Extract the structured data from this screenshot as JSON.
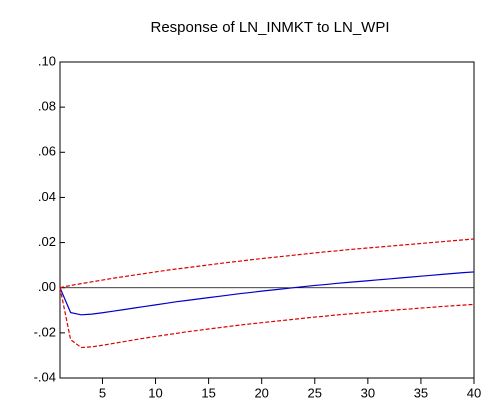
{
  "chart_data": {
    "type": "line",
    "title": "Response of LN_INMKT to LN_WPI",
    "x": [
      1,
      2,
      3,
      4,
      5,
      6,
      7,
      8,
      9,
      10,
      11,
      12,
      13,
      14,
      15,
      16,
      17,
      18,
      19,
      20,
      21,
      22,
      23,
      24,
      25,
      26,
      27,
      28,
      29,
      30,
      31,
      32,
      33,
      34,
      35,
      36,
      37,
      38,
      39,
      40
    ],
    "series": [
      {
        "color": "#0000cc",
        "dashed": false,
        "values": [
          0,
          -0.011,
          -0.012,
          -0.0117,
          -0.0111,
          -0.0104,
          -0.0097,
          -0.009,
          -0.0083,
          -0.0076,
          -0.0069,
          -0.0062,
          -0.0056,
          -0.005,
          -0.0044,
          -0.0038,
          -0.0032,
          -0.0026,
          -0.0021,
          -0.0015,
          -0.001,
          -0.0005,
          0,
          0.0005,
          0.001,
          0.0014,
          0.0019,
          0.0023,
          0.0027,
          0.0031,
          0.0035,
          0.0039,
          0.0043,
          0.0047,
          0.0051,
          0.0055,
          0.0059,
          0.0063,
          0.0067,
          0.007
        ]
      },
      {
        "color": "#dd0000",
        "dashed": true,
        "values": [
          0,
          0.001,
          0.0018,
          0.0026,
          0.0034,
          0.0042,
          0.0049,
          0.0056,
          0.0063,
          0.007,
          0.0077,
          0.0083,
          0.0089,
          0.0095,
          0.0101,
          0.0107,
          0.0113,
          0.0118,
          0.0124,
          0.0129,
          0.0134,
          0.0139,
          0.0144,
          0.0149,
          0.0154,
          0.0159,
          0.0163,
          0.0168,
          0.0172,
          0.0176,
          0.018,
          0.0184,
          0.0188,
          0.0192,
          0.0196,
          0.02,
          0.0204,
          0.0208,
          0.0212,
          0.0216
        ]
      },
      {
        "color": "#dd0000",
        "dashed": true,
        "values": [
          0,
          -0.023,
          -0.0265,
          -0.0262,
          -0.0255,
          -0.0247,
          -0.0239,
          -0.0231,
          -0.0223,
          -0.0216,
          -0.0209,
          -0.0202,
          -0.0195,
          -0.0189,
          -0.0183,
          -0.0177,
          -0.0171,
          -0.0165,
          -0.016,
          -0.0155,
          -0.015,
          -0.0145,
          -0.014,
          -0.0135,
          -0.013,
          -0.0126,
          -0.0121,
          -0.0117,
          -0.0113,
          -0.0109,
          -0.0105,
          -0.0101,
          -0.0097,
          -0.0094,
          -0.009,
          -0.0087,
          -0.0083,
          -0.008,
          -0.0077,
          -0.0074
        ]
      }
    ],
    "xlim": [
      1,
      40
    ],
    "xticks": [
      5,
      10,
      15,
      20,
      25,
      30,
      35,
      40
    ],
    "ylim": [
      -0.04,
      0.1
    ],
    "yticks": [
      {
        "value": 0.1,
        "label": ".10"
      },
      {
        "value": 0.08,
        "label": ".08"
      },
      {
        "value": 0.06,
        "label": ".06"
      },
      {
        "value": 0.04,
        "label": ".04"
      },
      {
        "value": 0.02,
        "label": ".02"
      },
      {
        "value": 0,
        "label": ".00"
      },
      {
        "value": -0.02,
        "label": "-.02"
      },
      {
        "value": -0.04,
        "label": "-.04"
      }
    ],
    "zero_line": true
  }
}
